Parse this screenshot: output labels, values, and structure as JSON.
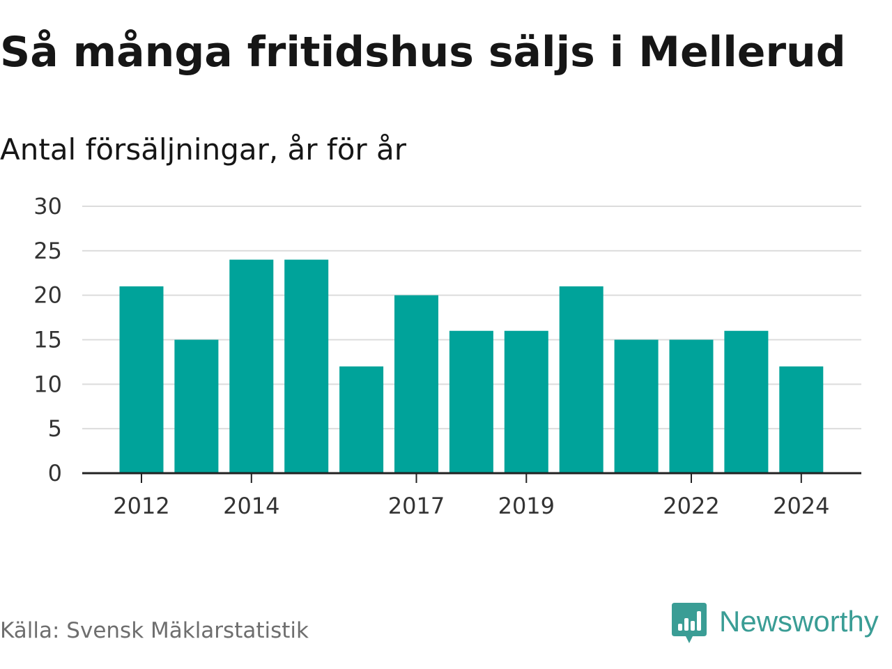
{
  "title": "Så många fritidshus säljs i Mellerud",
  "subtitle": "Antal försäljningar, år för år",
  "source": "Källa: Svensk Mäklarstatistik",
  "brand": {
    "name": "Newsworthy",
    "icon": "newsworthy-bar-chart-bubble-icon",
    "color": "#3a9d95"
  },
  "colors": {
    "bar": "#00a39a",
    "grid": "#dcdcdc",
    "axis": "#222222",
    "tick_text": "#333333"
  },
  "chart_data": {
    "type": "bar",
    "categories": [
      "2012",
      "2013",
      "2014",
      "2015",
      "2016",
      "2017",
      "2018",
      "2019",
      "2020",
      "2021",
      "2022",
      "2023",
      "2024"
    ],
    "values": [
      21,
      15,
      24,
      24,
      12,
      20,
      16,
      16,
      21,
      15,
      15,
      16,
      12
    ],
    "x_tick_labels": [
      "2012",
      "2014",
      "2017",
      "2019",
      "2022",
      "2024"
    ],
    "y_ticks": [
      0,
      5,
      10,
      15,
      20,
      25,
      30
    ],
    "ylim": [
      0,
      30
    ],
    "xlabel": "",
    "ylabel": "",
    "grid": true,
    "legend": "none"
  }
}
